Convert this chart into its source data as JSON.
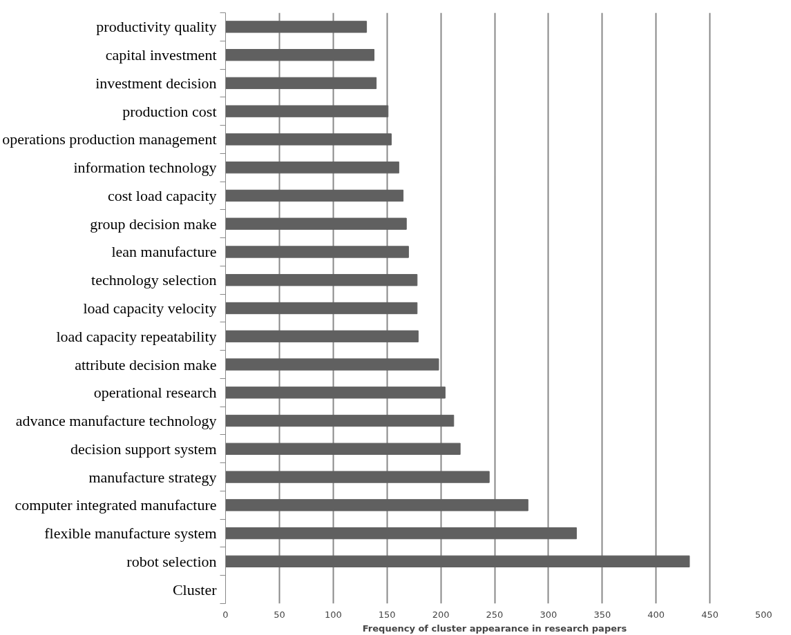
{
  "chart_data": {
    "type": "bar",
    "orientation": "horizontal",
    "xlabel": "Frequency of cluster appearance in research papers",
    "categories": [
      "productivity quality",
      "capital investment",
      "investment decision",
      "production cost",
      "operations production management",
      "information technology",
      "cost load capacity",
      "group decision make",
      "lean manufacture",
      "technology selection",
      "load capacity velocity",
      "load capacity repeatability",
      "attribute decision make",
      "operational research",
      "advance manufacture technology",
      "decision support system",
      "manufacture strategy",
      "computer integrated manufacture",
      "flexible manufacture system",
      "robot selection",
      "Cluster"
    ],
    "values": [
      131,
      138,
      140,
      151,
      154,
      161,
      165,
      168,
      170,
      178,
      178,
      179,
      198,
      204,
      212,
      218,
      245,
      281,
      326,
      431,
      null
    ],
    "color": "#606060",
    "xlim": [
      0,
      500
    ],
    "xticks": [
      0,
      50,
      100,
      150,
      200,
      250,
      300,
      350,
      400,
      450,
      500
    ],
    "grid": "x"
  }
}
